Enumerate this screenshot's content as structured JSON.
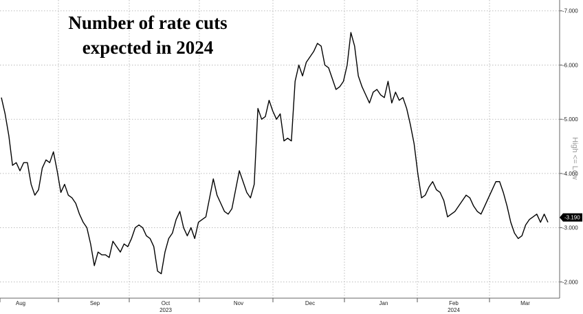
{
  "chart_data": {
    "type": "line",
    "title_lines": [
      "Number of rate cuts",
      "expected in 2024"
    ],
    "side_label": "High <= Low",
    "y_axis": {
      "position": "right",
      "ticks": [
        -7,
        -6,
        -5,
        -4,
        -3,
        -2
      ],
      "tick_labels": [
        "-7.000",
        "-6.000",
        "-5.000",
        "-4.000",
        "-3.000",
        "-2.000"
      ],
      "ylim": [
        -1.7,
        -7.2
      ],
      "inverted": true
    },
    "grid": true,
    "x_axis": {
      "months": [
        "Aug",
        "Sep",
        "Oct",
        "Nov",
        "Dec",
        "Jan",
        "Feb",
        "Mar"
      ],
      "years": [
        {
          "label": "2023",
          "under_month": "Oct"
        },
        {
          "label": "2024",
          "under_month": "Feb"
        }
      ]
    },
    "last_value": {
      "value": -3.19,
      "label": "-3.190",
      "color": "#000000"
    },
    "series": [
      {
        "color": "#000000",
        "values": [
          -5.4,
          -5.1,
          -4.7,
          -4.15,
          -4.2,
          -4.05,
          -4.2,
          -4.2,
          -3.8,
          -3.6,
          -3.7,
          -4.1,
          -4.25,
          -4.2,
          -4.4,
          -4.05,
          -3.65,
          -3.8,
          -3.6,
          -3.55,
          -3.45,
          -3.25,
          -3.1,
          -3.0,
          -2.7,
          -2.3,
          -2.55,
          -2.5,
          -2.5,
          -2.45,
          -2.75,
          -2.65,
          -2.55,
          -2.7,
          -2.65,
          -2.8,
          -3.0,
          -3.05,
          -3.0,
          -2.85,
          -2.8,
          -2.65,
          -2.2,
          -2.15,
          -2.55,
          -2.8,
          -2.9,
          -3.15,
          -3.3,
          -3.0,
          -2.85,
          -3.0,
          -2.8,
          -3.1,
          -3.15,
          -3.2,
          -3.55,
          -3.9,
          -3.6,
          -3.45,
          -3.3,
          -3.25,
          -3.35,
          -3.7,
          -4.05,
          -3.85,
          -3.65,
          -3.55,
          -3.8,
          -5.2,
          -5.0,
          -5.05,
          -5.35,
          -5.15,
          -5.0,
          -5.1,
          -4.6,
          -4.65,
          -4.6,
          -5.7,
          -6.0,
          -5.8,
          -6.05,
          -6.15,
          -6.25,
          -6.4,
          -6.35,
          -6.0,
          -5.95,
          -5.75,
          -5.55,
          -5.6,
          -5.7,
          -6.0,
          -6.6,
          -6.35,
          -5.8,
          -5.6,
          -5.45,
          -5.3,
          -5.5,
          -5.55,
          -5.45,
          -5.4,
          -5.7,
          -5.3,
          -5.5,
          -5.35,
          -5.4,
          -5.2,
          -4.9,
          -4.55,
          -4.0,
          -3.55,
          -3.6,
          -3.75,
          -3.85,
          -3.7,
          -3.65,
          -3.5,
          -3.2,
          -3.25,
          -3.3,
          -3.4,
          -3.5,
          -3.6,
          -3.55,
          -3.4,
          -3.3,
          -3.25,
          -3.4,
          -3.55,
          -3.7,
          -3.85,
          -3.85,
          -3.65,
          -3.4,
          -3.1,
          -2.9,
          -2.8,
          -2.85,
          -3.05,
          -3.15,
          -3.2,
          -3.25,
          -3.1,
          -3.25,
          -3.1
        ]
      }
    ]
  }
}
